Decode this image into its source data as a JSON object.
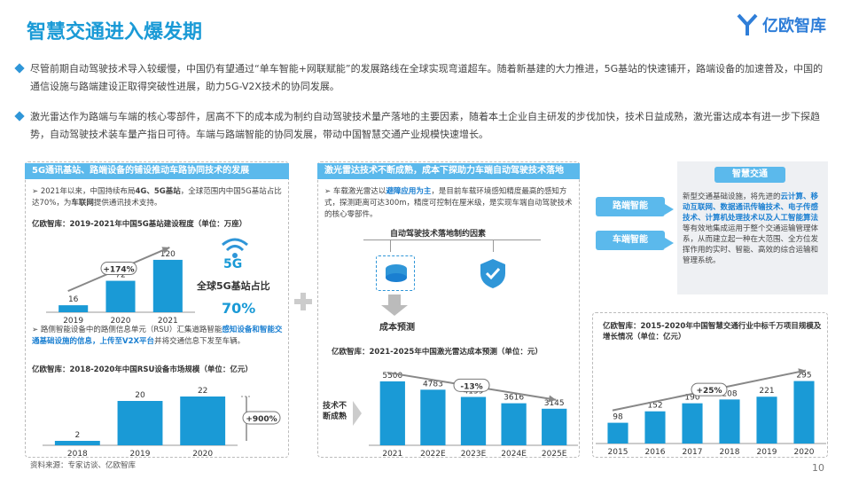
{
  "title": "智慧交通进入爆发期",
  "logo": "亿欧智库",
  "bullets": [
    "尽管前期自动驾驶技术导入较缓慢，中国仍有望通过“单车智能+网联赋能”的发展路线在全球实现弯道超车。随着新基建的大力推进，5G基站的快速铺开，路端设备的加速普及，中国的通信设施与路端建设正取得突破性进展，助力5G-V2X技术的协同发展。",
    "激光雷达作为路端与车端的核心零部件，居高不下的成本成为制约自动驾驶技术量产落地的主要因素，随着本土企业自主研发的步伐加快，技术日益成熟，激光雷达成本有进一步下探趋势，自动驾驶技术装车量产指日可待。车端与路端智能的协同发展，带动中国智慧交通产业规模快速增长。"
  ],
  "panel1": {
    "header": "5G通讯基站、路端设备的铺设推动车路协同技术的发展",
    "text1a": "2021年以来，中国持续布局",
    "text1b": "4G、5G基站",
    "text1c": "，全球范围内中国5G基站占比达70%，为",
    "text1d": "车联网",
    "text1e": "提供通讯技术支持。",
    "chart1_title": "亿欧智库：2019-2021年中国5G基站建设程度（单位：万座）",
    "chart1": {
      "categories": [
        "2019",
        "2020",
        "2021"
      ],
      "values": [
        16,
        72,
        120
      ],
      "growth": "+174%"
    },
    "badge": "5G",
    "share_label": "全球5G基站占比",
    "share_value": "70%",
    "text2a": "路侧智能设备中的路侧信息单元（RSU）汇集道路智能",
    "text2b": "感知设备和智能交通基础设施的信息，上传至V2X平台",
    "text2c": "并将交通信息下发至车辆。",
    "chart2_title": "亿欧智库：2018-2020年中国RSU设备市场规模（单位：亿元）",
    "chart2": {
      "categories": [
        "2018",
        "2019",
        "2020"
      ],
      "values": [
        2,
        20,
        22
      ],
      "growth": "+900%"
    }
  },
  "panel2": {
    "header": "激光雷达技术不断成熟，成本下探助力车端自动驾驶技术落地",
    "text_a": "车载激光雷达以",
    "text_b": "避障应用为主",
    "text_c": "，是目前车载环境感知精度最高的感知方式，探测距离可达300m，精度可控制在厘米级，是实现车端自动驾驶技术的核心零部件。",
    "factor_title": "自动驾驶技术落地制约因素",
    "cost_label": "成本预测",
    "immature_label": "技术不断成熟",
    "chart_title": "亿欧智库：2021-2025年中国激光雷达成本预测（单位：元）",
    "chart": {
      "categories": [
        "2021",
        "2022E",
        "2023E",
        "2024E",
        "2025E"
      ],
      "values": [
        5500,
        4783,
        4159,
        3616,
        3145
      ],
      "growth": "-13%"
    }
  },
  "panel3": {
    "tag_top": "智慧交通",
    "road_label": "路端智能",
    "car_label": "车端智能",
    "desc_a": "新型交通基础设施，将先进的",
    "desc_b": "云计算、移动互联网、数据通讯传输技术、电子传感技术、计算机处理技术以及人工智能算法",
    "desc_c": "等有效地集成运用于整个交通运输管理体系，从而建立起一种在大范围、全方位发挥作用的实时、智能、高效的综合运输和管理系统。",
    "chart_title": "亿欧智库：2015-2020年中国智慧交通行业中标千万项目规模及增长情况（单位：亿元）",
    "chart": {
      "categories": [
        "2015",
        "2016",
        "2017",
        "2018",
        "2019",
        "2020"
      ],
      "values": [
        98,
        152,
        190,
        208,
        221,
        295
      ],
      "growth": "+25%"
    }
  },
  "footer": "资料来源：专家访谈、亿欧智库",
  "page": "10",
  "colors": {
    "accent": "#1a9ad6",
    "header": "#5bb9ec"
  }
}
